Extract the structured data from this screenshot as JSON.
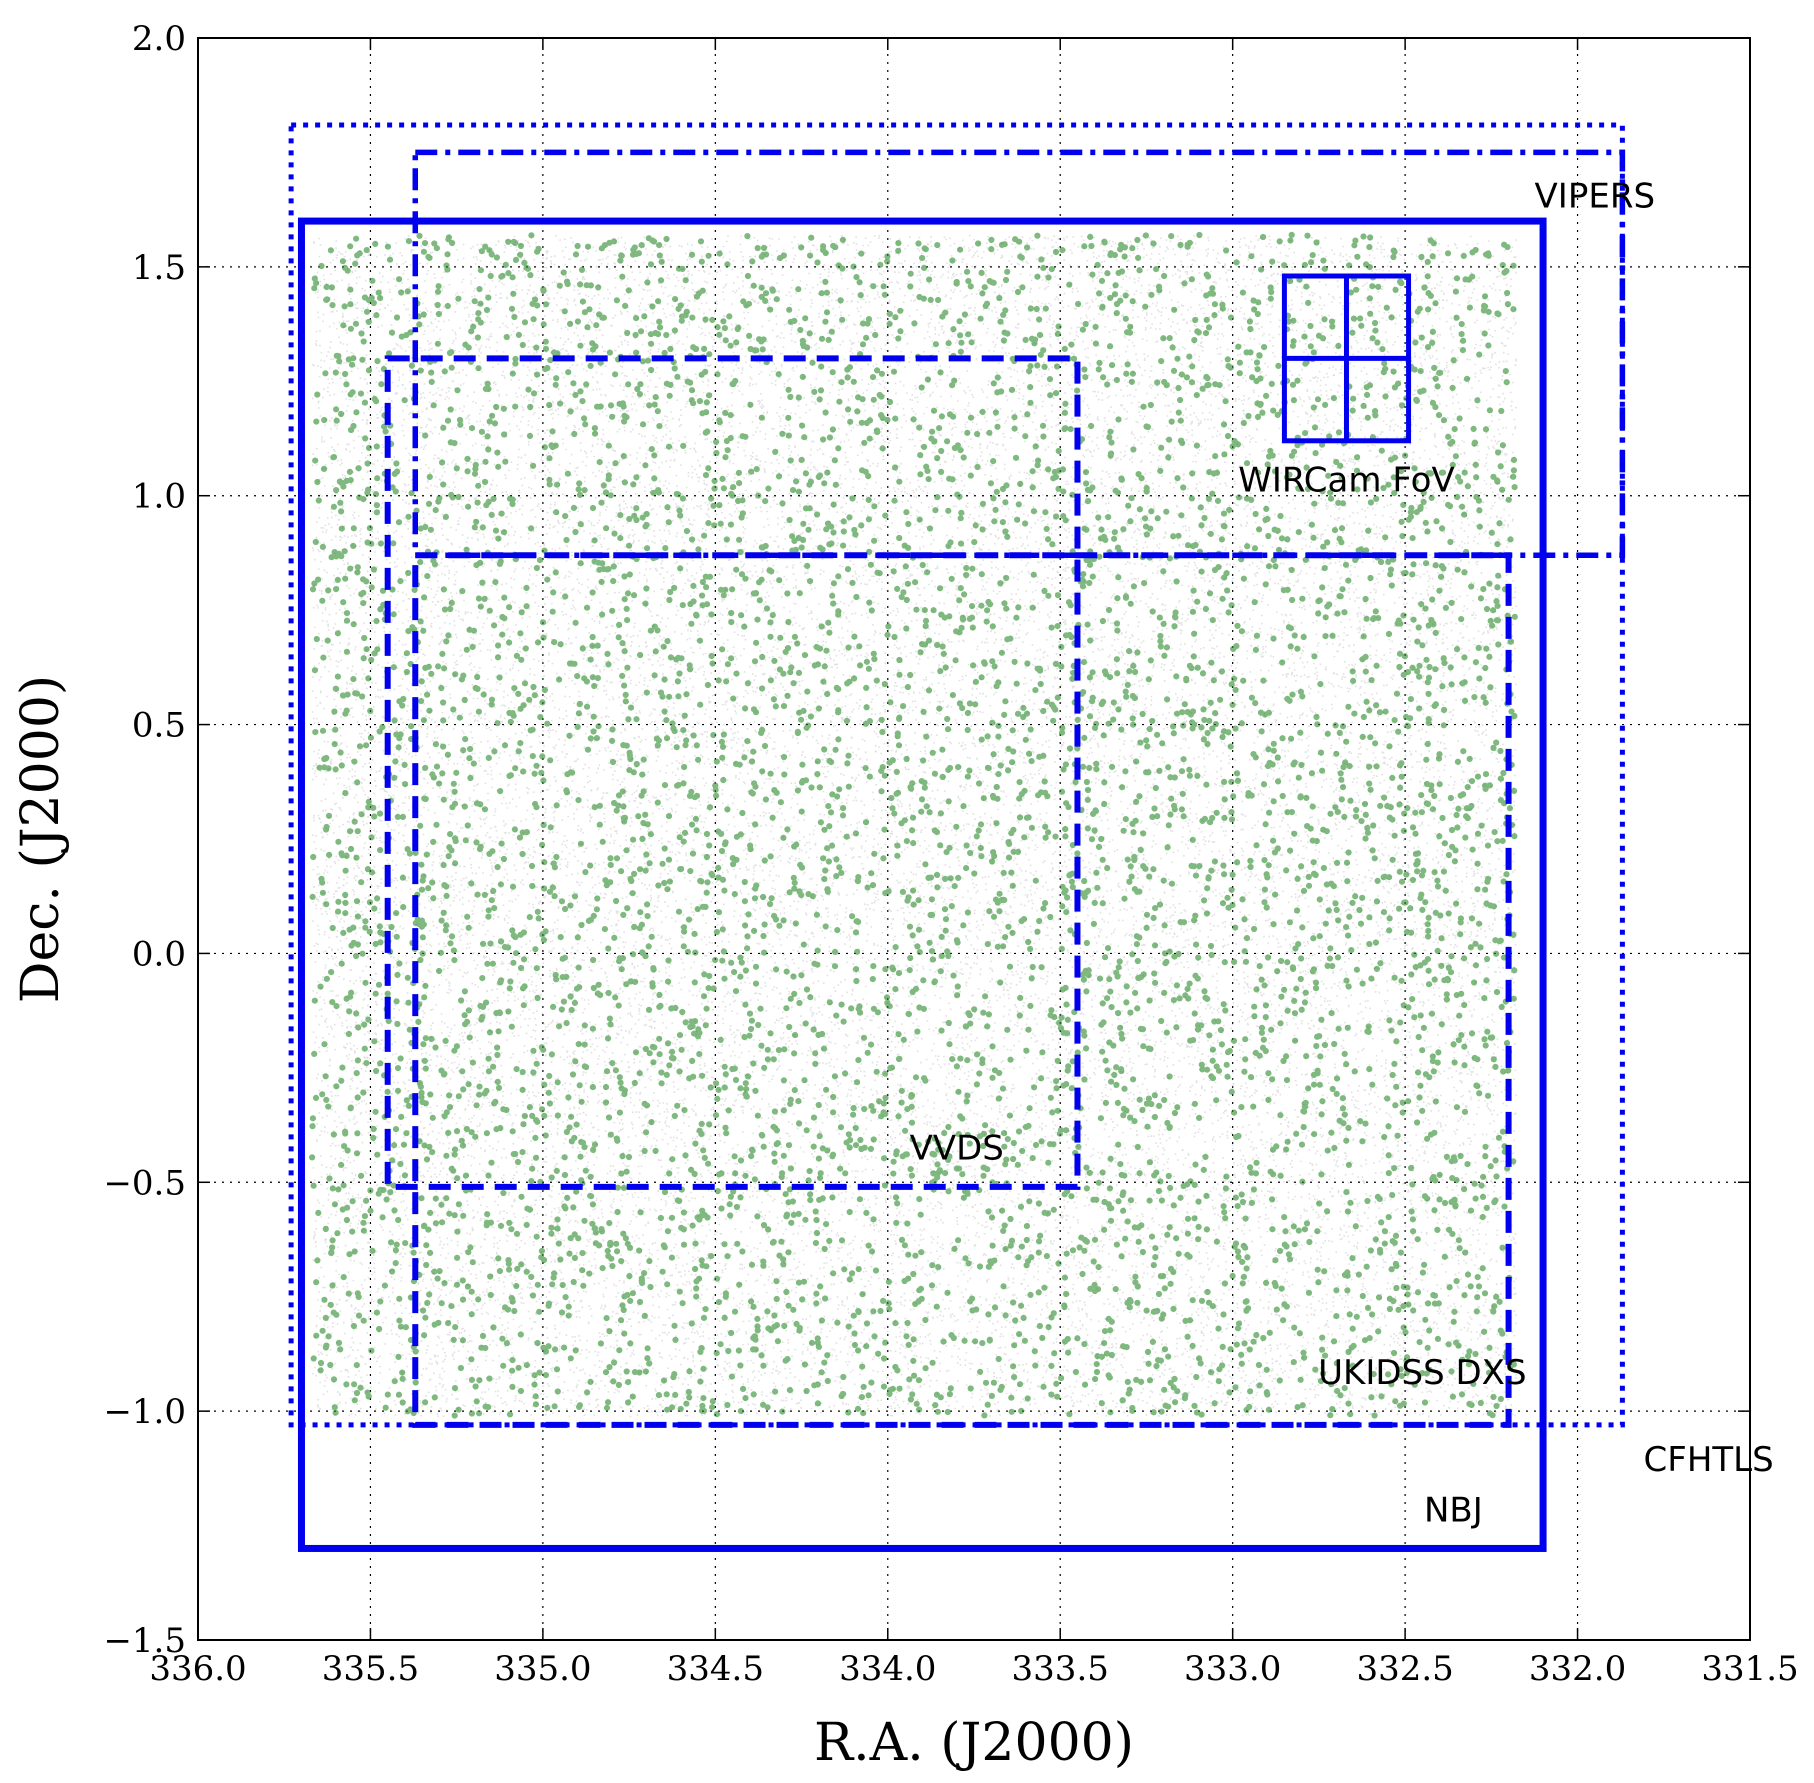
{
  "chart_data": {
    "type": "scatter",
    "title": "",
    "xlabel": "R.A. (J2000)",
    "ylabel": "Dec. (J2000)",
    "xlim": [
      336.0,
      331.5
    ],
    "ylim": [
      -1.5,
      2.0
    ],
    "x_axis_inverted": true,
    "grid": true,
    "x_ticks": [
      336.0,
      335.5,
      335.0,
      334.5,
      334.0,
      333.5,
      333.0,
      332.5,
      332.0,
      331.5
    ],
    "x_tick_labels": [
      "336.0",
      "335.5",
      "335.0",
      "334.5",
      "334.0",
      "333.5",
      "333.0",
      "332.5",
      "332.0",
      "331.5"
    ],
    "y_ticks": [
      -1.5,
      -1.0,
      -0.5,
      0.0,
      0.5,
      1.0,
      1.5,
      2.0
    ],
    "y_tick_labels": [
      "−1.5",
      "−1.0",
      "−0.5",
      "0.0",
      "0.5",
      "1.0",
      "1.5",
      "2.0"
    ],
    "colors": {
      "background_sources": "#a8a8a8",
      "emitter_sources": "#2a8a2a",
      "survey_outlines": "#0000ee"
    },
    "scatter_layers": [
      {
        "kind": "background",
        "ra_range": [
          335.67,
          332.18
        ],
        "dec_range": [
          -1.01,
          1.57
        ],
        "alpha": 0.35
      },
      {
        "kind": "emitters",
        "ra_range": [
          335.67,
          332.18
        ],
        "dec_range": [
          -1.01,
          1.57
        ],
        "alpha": 0.6
      }
    ],
    "regions": [
      {
        "label": "CFHTLS",
        "style": "dotted",
        "ra": [
          335.73,
          331.87
        ],
        "dec": [
          -1.03,
          1.81
        ],
        "label_ra": 331.62,
        "label_dec": -1.11
      },
      {
        "label": "VIPERS",
        "style": "dashdot",
        "ra": [
          335.37,
          331.87
        ],
        "dec": [
          0.87,
          1.75
        ],
        "label_ra": 331.95,
        "label_dec": 1.65
      },
      {
        "label": "NBJ",
        "style": "solid",
        "ra": [
          335.7,
          332.1
        ],
        "dec": [
          -1.3,
          1.6
        ],
        "label_ra": 332.36,
        "label_dec": -1.22
      },
      {
        "label": "UKIDSS DXS",
        "style": "dashed",
        "ra": [
          335.37,
          332.2
        ],
        "dec": [
          -1.03,
          0.87
        ],
        "label_ra": 332.45,
        "label_dec": -0.92
      },
      {
        "label": "VVDS",
        "style": "dashed",
        "ra": [
          335.45,
          333.45
        ],
        "dec": [
          -0.51,
          1.3
        ],
        "label_ra": 333.8,
        "label_dec": -0.43
      },
      {
        "label": "WIRCam FoV",
        "style": "solid-grid",
        "ra": [
          332.85,
          332.49
        ],
        "dec": [
          1.12,
          1.48
        ],
        "label_ra": 332.67,
        "label_dec": 1.03
      }
    ]
  }
}
